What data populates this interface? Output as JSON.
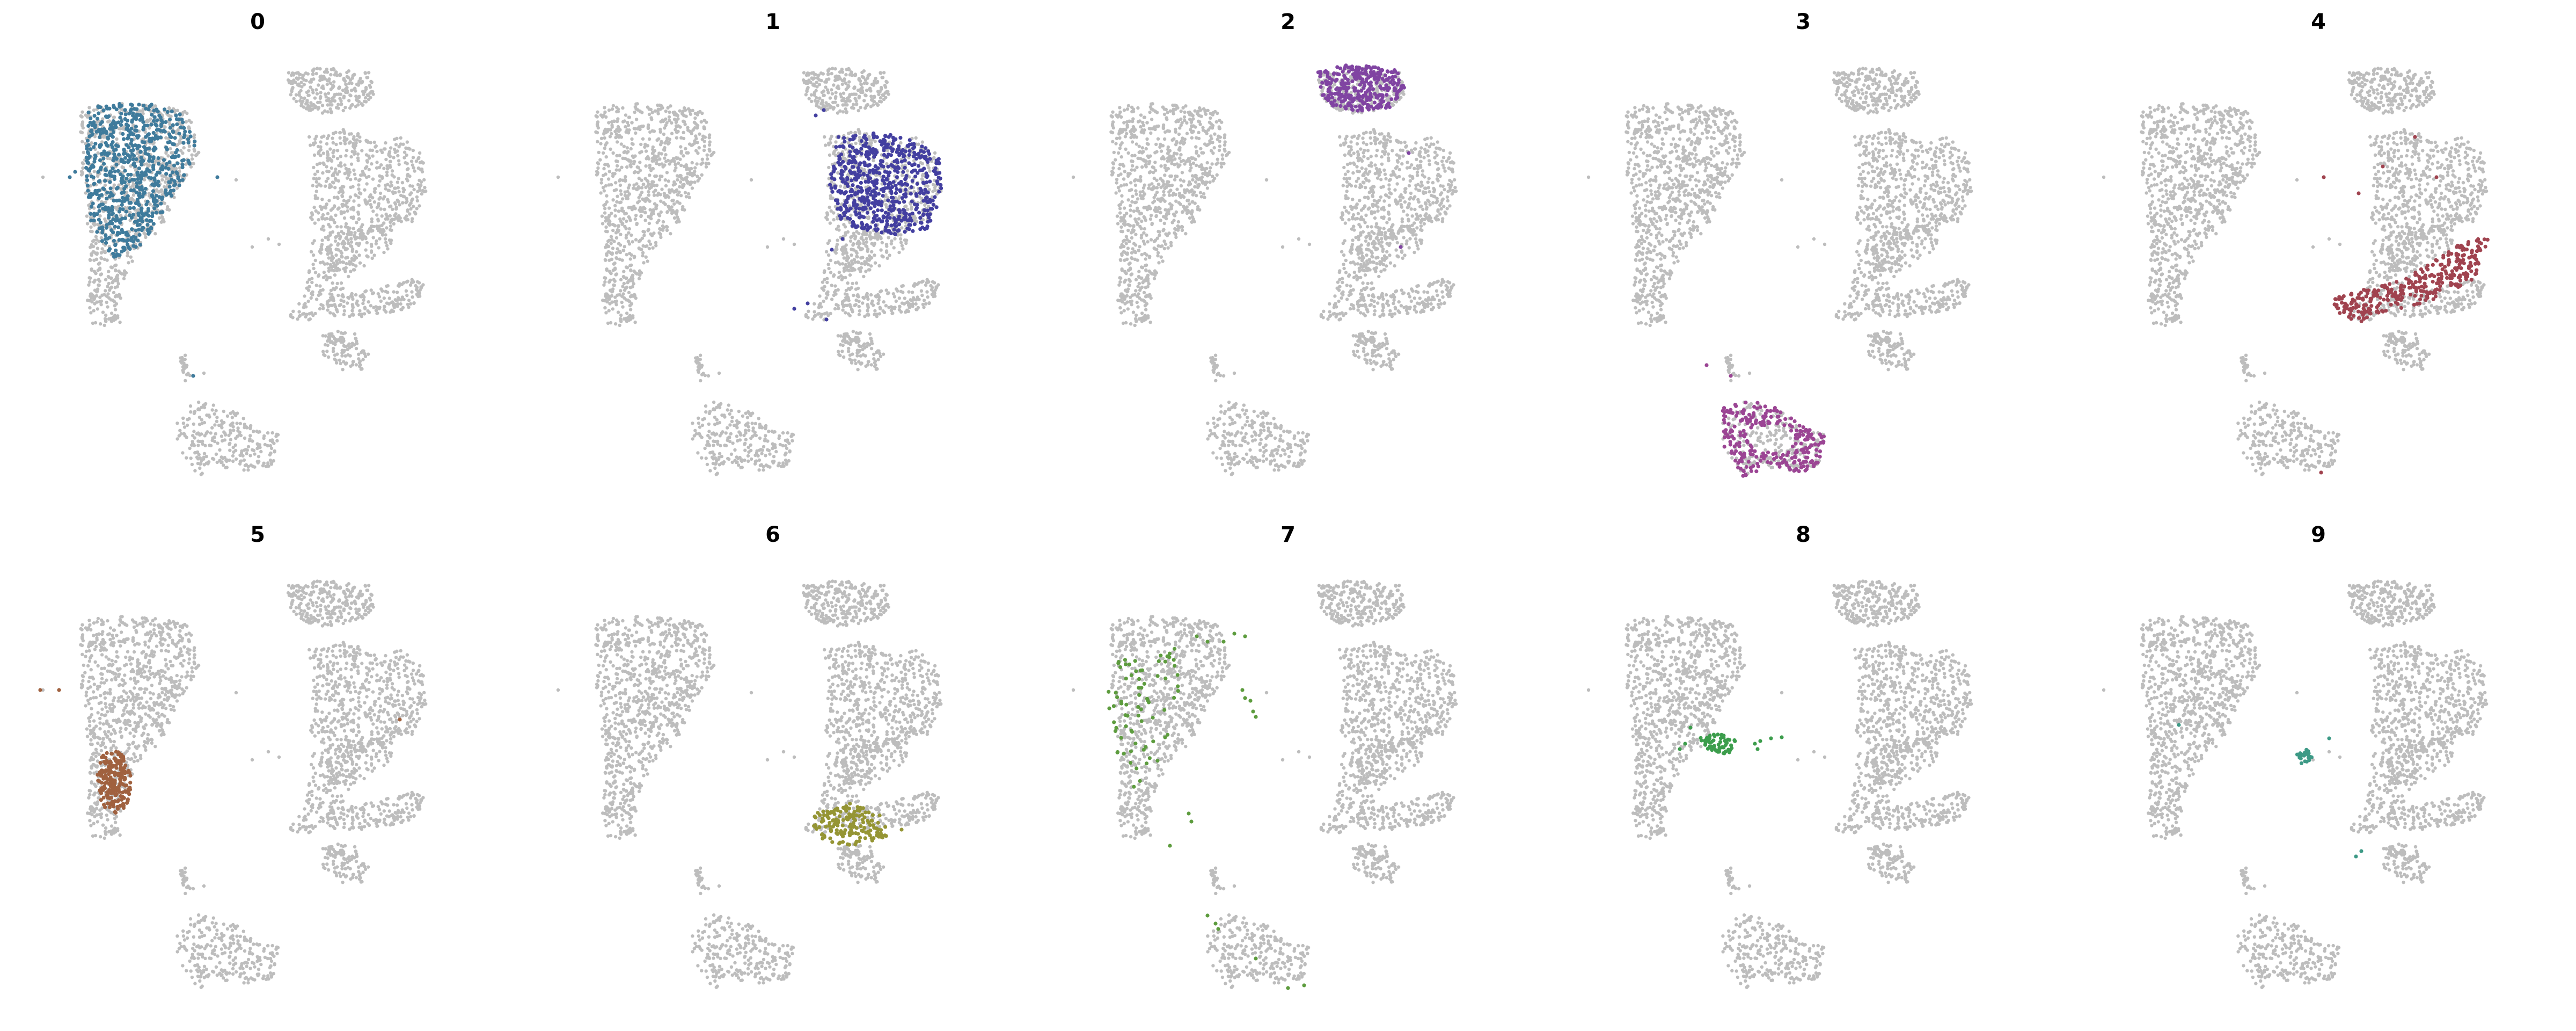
{
  "background": "#ffffff",
  "base_color": "#bdbdbd",
  "chart_data": {
    "type": "scatter",
    "grid": false,
    "axes_visible": false,
    "panels": [
      {
        "title": "0",
        "cluster": "0",
        "color": "#3f7b9c"
      },
      {
        "title": "1",
        "cluster": "1",
        "color": "#433fa0"
      },
      {
        "title": "2",
        "cluster": "2",
        "color": "#8044a2"
      },
      {
        "title": "3",
        "cluster": "3",
        "color": "#9b4594"
      },
      {
        "title": "4",
        "cluster": "4",
        "color": "#a0434f"
      },
      {
        "title": "5",
        "cluster": "5",
        "color": "#a0613f"
      },
      {
        "title": "6",
        "cluster": "6",
        "color": "#959534"
      },
      {
        "title": "7",
        "cluster": "7",
        "color": "#5d9c3e"
      },
      {
        "title": "8",
        "cluster": "8",
        "color": "#3c9d4c"
      },
      {
        "title": "9",
        "cluster": "9",
        "color": "#3d9a86"
      }
    ]
  }
}
